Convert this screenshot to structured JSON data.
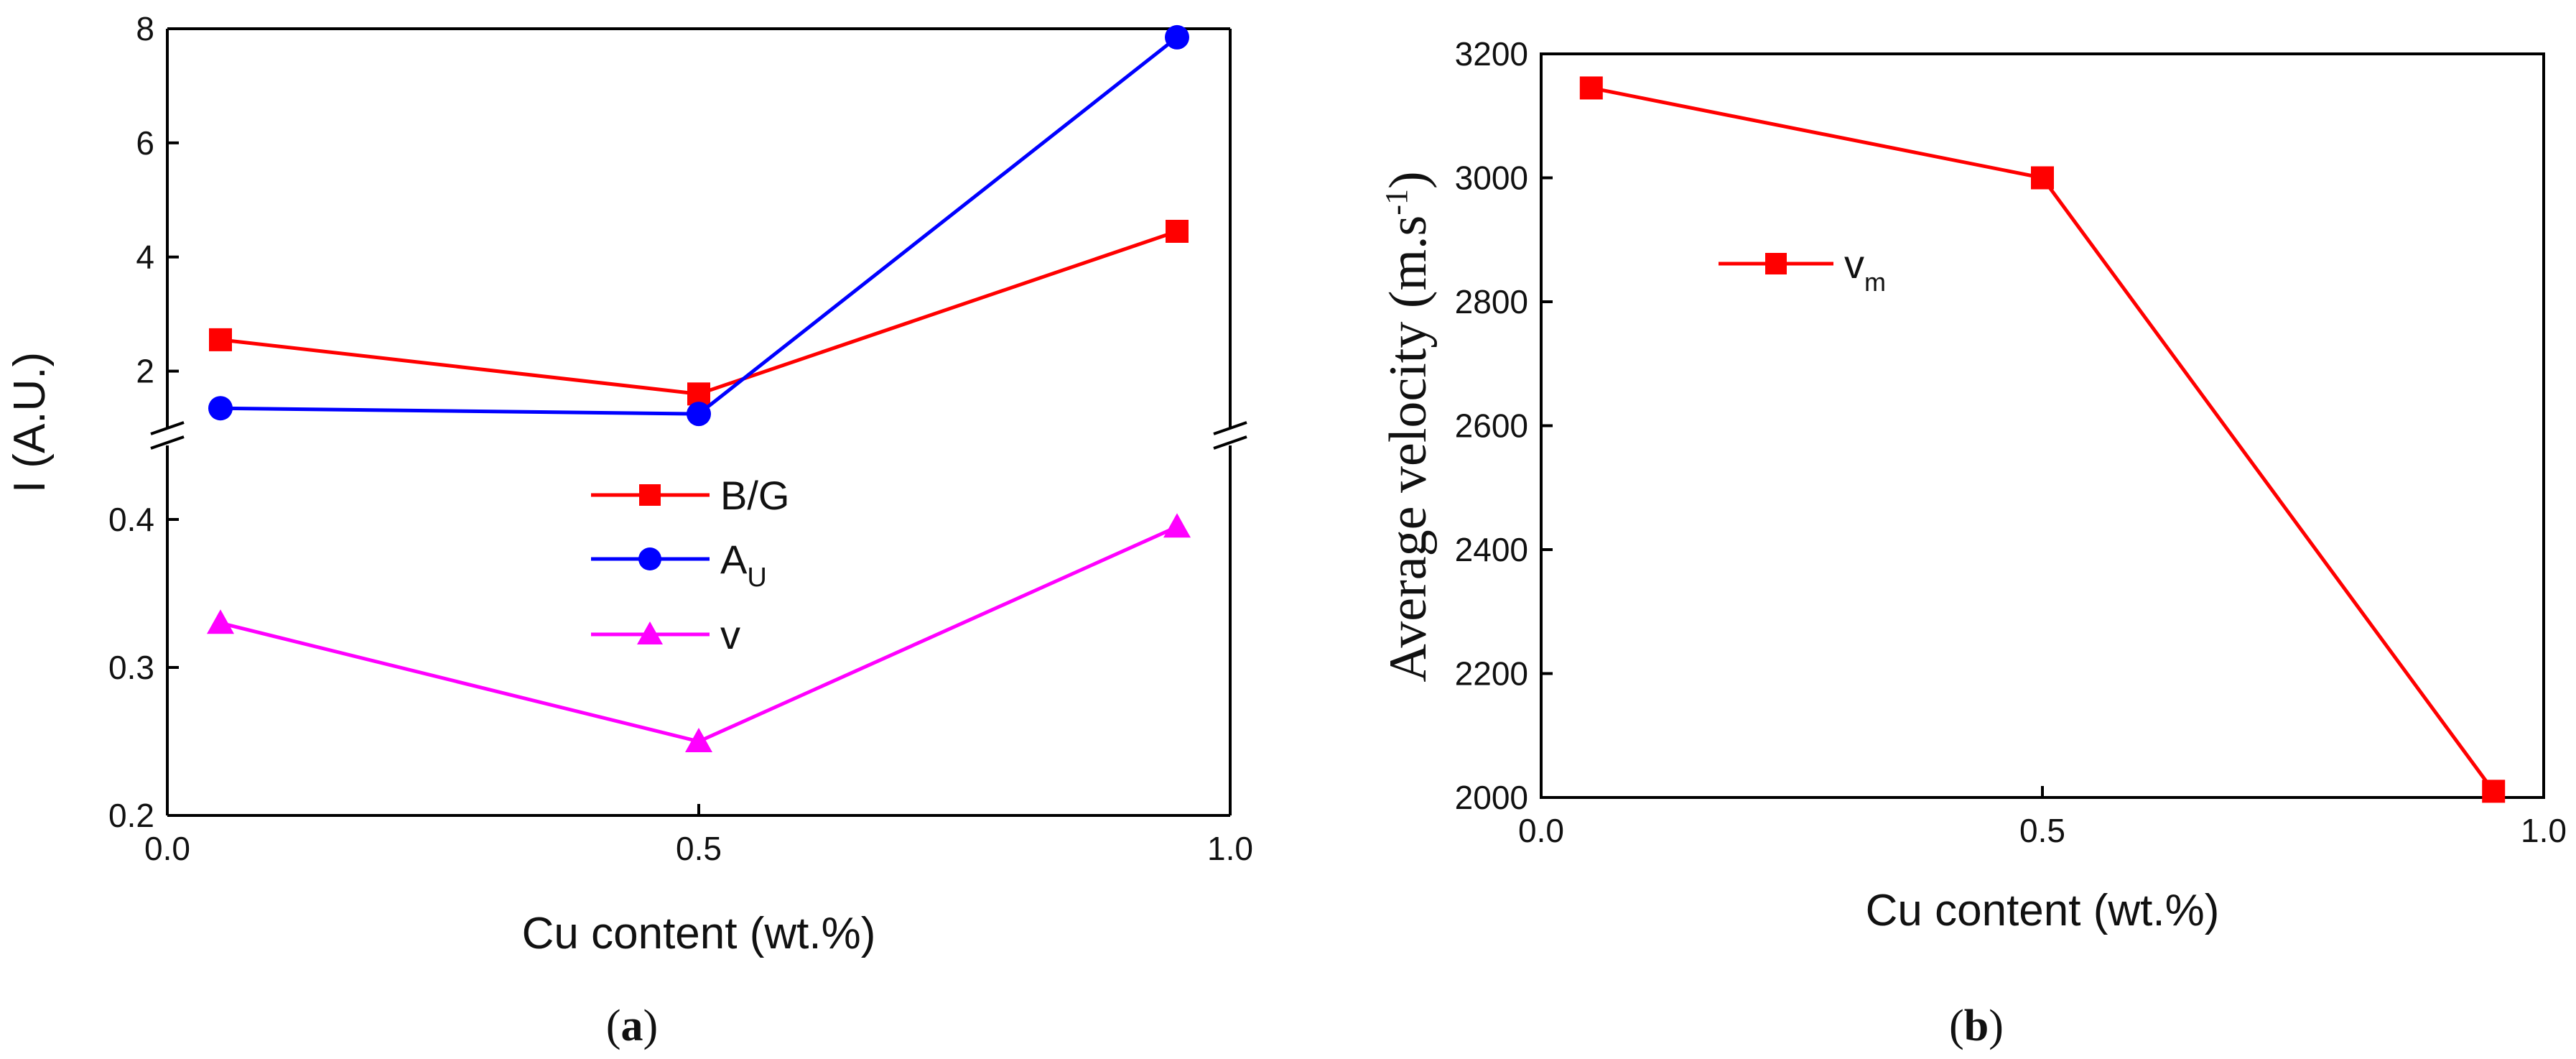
{
  "chart_data": [
    {
      "panel_label": "a",
      "type": "line",
      "ylabel": "I (A.U.)",
      "xlabel": "Cu content (wt.%)",
      "xlim": [
        0.0,
        1.0
      ],
      "xticks": [
        "0.0",
        "0.5",
        "1.0"
      ],
      "y_break": true,
      "upper_ylim": [
        1.0,
        8.0
      ],
      "upper_yticks": [
        "2",
        "4",
        "6",
        "8"
      ],
      "lower_ylim": [
        0.2,
        0.45
      ],
      "lower_yticks": [
        "0.2",
        "0.3",
        "0.4"
      ],
      "x": [
        0.05,
        0.5,
        0.95
      ],
      "series": [
        {
          "name": "B/G",
          "legend_main": "B/G",
          "legend_sub": "",
          "segment": "upper",
          "marker": "square",
          "color": "#ff0000",
          "values": [
            2.55,
            1.6,
            4.45
          ]
        },
        {
          "name": "A_U",
          "legend_main": "A",
          "legend_sub": "U",
          "segment": "upper",
          "marker": "circle",
          "color": "#0000ff",
          "values": [
            1.35,
            1.25,
            7.85
          ]
        },
        {
          "name": "v",
          "legend_main": "v",
          "legend_sub": "",
          "segment": "lower",
          "marker": "triangle",
          "color": "#ff00ff",
          "values": [
            0.33,
            0.25,
            0.395
          ]
        }
      ]
    },
    {
      "panel_label": "b",
      "type": "line",
      "ylabel_main": "Average velocity  (m.s",
      "ylabel_sup": "-1",
      "ylabel_tail": ")",
      "xlabel": "Cu content (wt.%)",
      "xlim": [
        0.0,
        1.0
      ],
      "xticks": [
        "0.0",
        "0.5",
        "1.0"
      ],
      "ylim": [
        2000,
        3200
      ],
      "yticks": [
        "2000",
        "2200",
        "2400",
        "2600",
        "2800",
        "3000",
        "3200"
      ],
      "x": [
        0.05,
        0.5,
        0.95
      ],
      "series": [
        {
          "name": "v_m",
          "legend_main": "v",
          "legend_sub": "m",
          "marker": "square",
          "color": "#ff0000",
          "values": [
            3145,
            3000,
            2010
          ]
        }
      ]
    }
  ]
}
